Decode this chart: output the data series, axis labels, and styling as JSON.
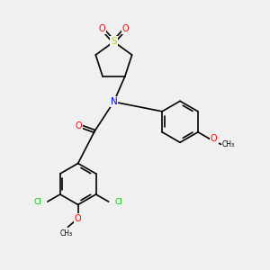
{
  "bg_color": "#f0f0f0",
  "bond_color": "#000000",
  "bond_width": 1.2,
  "atom_colors": {
    "O": "#ff0000",
    "N": "#0000ff",
    "S": "#cccc00",
    "Cl": "#00cc00",
    "C": "#000000"
  },
  "fig_size": [
    3.0,
    3.0
  ],
  "dpi": 100
}
